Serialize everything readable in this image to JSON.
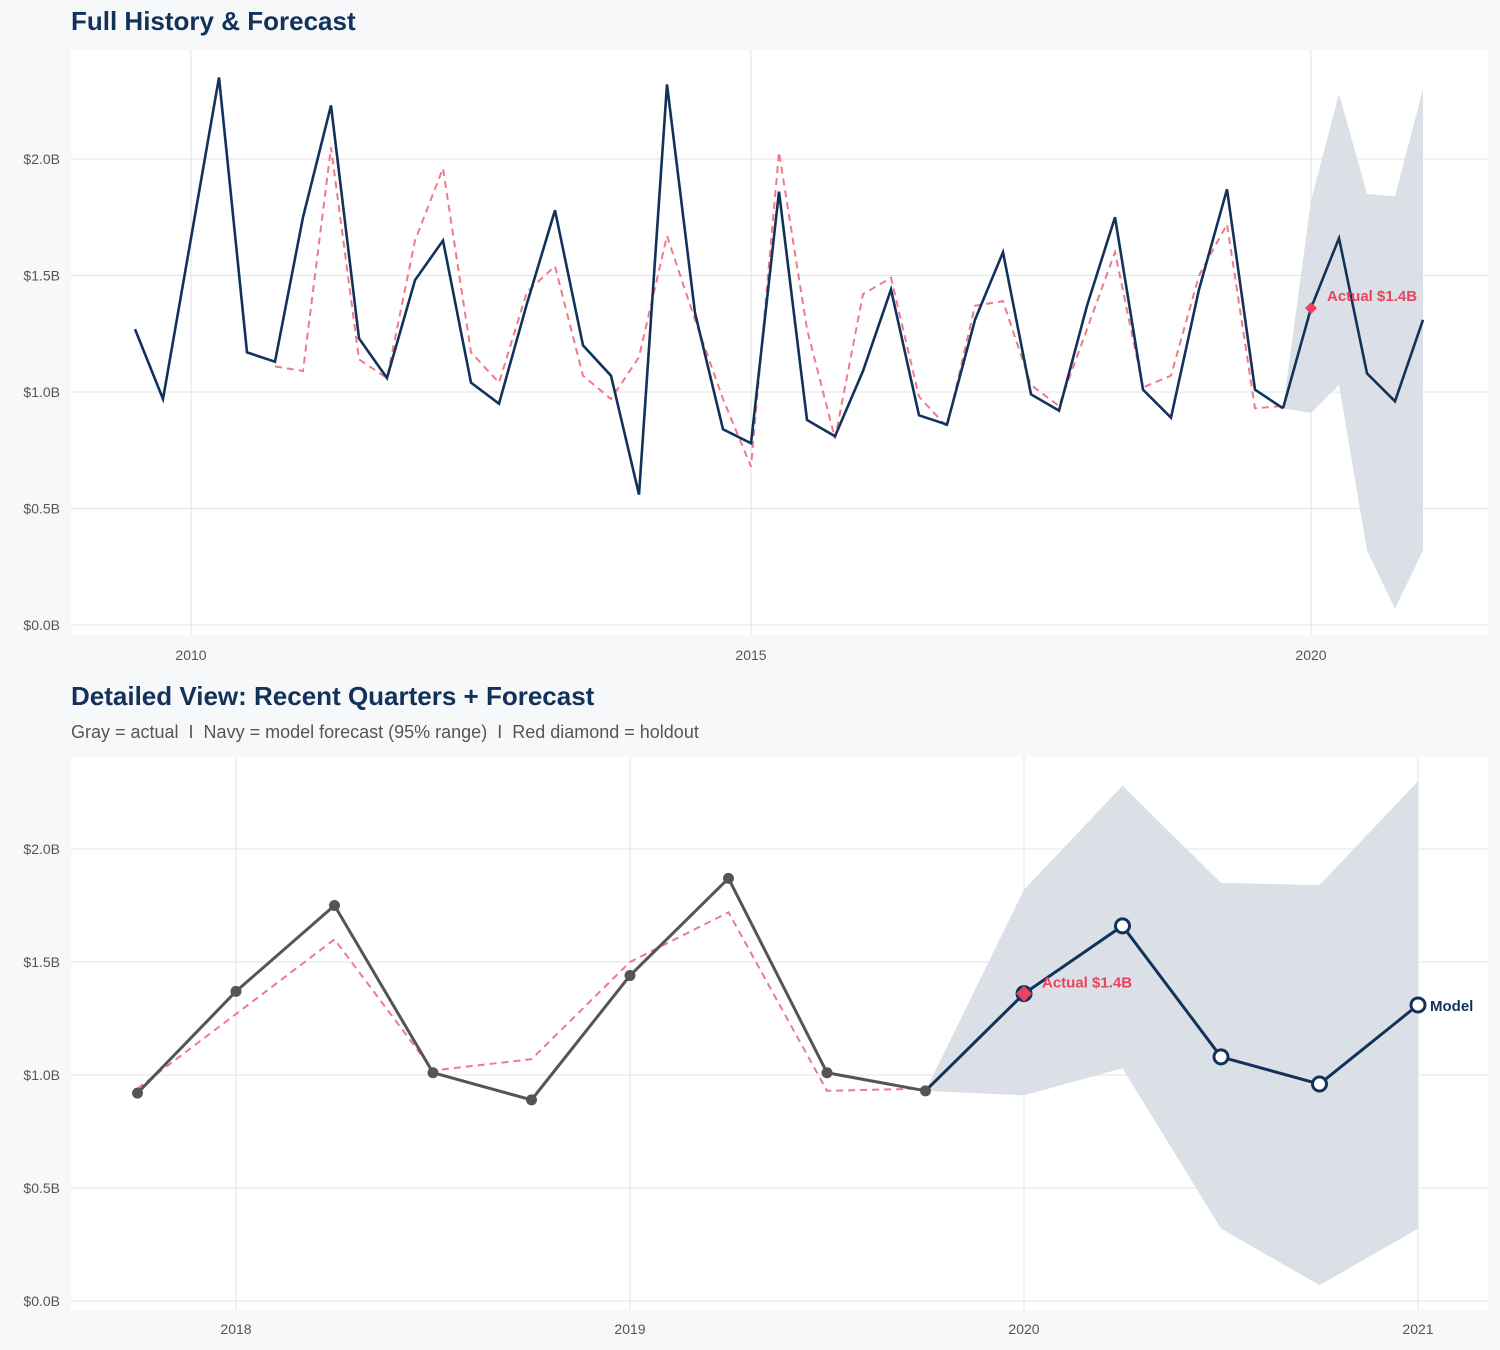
{
  "chart_data": [
    {
      "type": "line",
      "title": "Full History & Forecast",
      "xlim": [
        2008.93,
        2021.58
      ],
      "ylim": [
        -0.05,
        2.5
      ],
      "x_ticks": [
        2010,
        2015,
        2020
      ],
      "x_tick_labels": [
        "2010",
        "2015",
        "2020"
      ],
      "y_ticks": [
        0,
        0.5,
        1.0,
        1.5,
        2.0
      ],
      "y_tick_labels": [
        "$0.0B",
        "$0.5B",
        "$1.0B",
        "$1.5B",
        "$2.0B"
      ],
      "grid": true,
      "actual": {
        "start": 2009.5,
        "step": 0.25,
        "color": "#13325b",
        "values": [
          1.27,
          0.97,
          1.66,
          2.35,
          1.17,
          1.13,
          1.75,
          2.23,
          1.23,
          1.06,
          1.48,
          1.65,
          1.04,
          0.95,
          1.38,
          1.78,
          1.2,
          1.07,
          0.56,
          2.32,
          1.34,
          0.84,
          0.78,
          1.86,
          0.88,
          0.81,
          1.09,
          1.44,
          0.9,
          0.86,
          1.31,
          1.6,
          0.99,
          0.92,
          1.37,
          1.75,
          1.01,
          0.89,
          1.44,
          1.87,
          1.01,
          0.93
        ]
      },
      "fitted": {
        "start": 2010.75,
        "step": 0.25,
        "color": "#ef7a8c",
        "values": [
          1.11,
          1.09,
          2.05,
          1.14,
          1.06,
          1.65,
          1.96,
          1.17,
          1.04,
          1.43,
          1.54,
          1.07,
          0.97,
          1.15,
          1.67,
          1.31,
          0.97,
          0.68,
          2.03,
          1.27,
          0.8,
          1.42,
          1.49,
          0.98,
          0.85,
          1.37,
          1.39,
          1.03,
          0.94,
          1.27,
          1.6,
          1.02,
          1.07,
          1.5,
          1.72,
          0.93,
          0.94
        ]
      },
      "forecast": {
        "x": [
          2019.75,
          2020.0,
          2020.25,
          2020.5,
          2020.75,
          2021.0
        ],
        "values": [
          0.93,
          1.36,
          1.66,
          1.08,
          0.96,
          1.31
        ],
        "lower": [
          0.93,
          0.91,
          1.03,
          0.32,
          0.07,
          0.32
        ],
        "upper": [
          0.93,
          1.82,
          2.28,
          1.85,
          1.84,
          2.3
        ],
        "color": "#13325b",
        "band_color": "#d9dee5"
      },
      "holdout": {
        "x": 2020.0,
        "value": 1.36,
        "label": "Actual $1.4B",
        "color": "#e8435f"
      }
    },
    {
      "type": "line",
      "title": "Detailed View: Recent Quarters + Forecast",
      "subtitle": "Gray = actual  I  Navy = model forecast (95% range)  I  Red diamond = holdout",
      "xlim": [
        2017.58,
        2021.18
      ],
      "ylim": [
        -0.04,
        2.4
      ],
      "x_ticks": [
        2018,
        2019,
        2020,
        2021
      ],
      "x_tick_labels": [
        "2018",
        "2019",
        "2020",
        "2021"
      ],
      "y_ticks": [
        0,
        0.5,
        1.0,
        1.5,
        2.0
      ],
      "y_tick_labels": [
        "$0.0B",
        "$0.5B",
        "$1.0B",
        "$1.5B",
        "$2.0B"
      ],
      "grid": true,
      "actual": {
        "start": 2017.75,
        "step": 0.25,
        "color": "#555555",
        "values": [
          0.92,
          1.37,
          1.75,
          1.01,
          0.89,
          1.44,
          1.87,
          1.01,
          0.93
        ]
      },
      "fitted": {
        "start": 2017.75,
        "step": 0.25,
        "color": "#ef7a8c",
        "values": [
          0.94,
          1.27,
          1.6,
          1.02,
          1.07,
          1.5,
          1.72,
          0.93,
          0.94
        ]
      },
      "forecast": {
        "x": [
          2019.75,
          2020.0,
          2020.25,
          2020.5,
          2020.75,
          2021.0
        ],
        "values": [
          0.93,
          1.36,
          1.66,
          1.08,
          0.96,
          1.31
        ],
        "lower": [
          0.93,
          0.91,
          1.03,
          0.32,
          0.07,
          0.32
        ],
        "upper": [
          0.93,
          1.82,
          2.28,
          1.85,
          1.84,
          2.3
        ],
        "color": "#13325b",
        "band_color": "#d9dee5",
        "end_label": "Model"
      },
      "holdout": {
        "x": 2020.0,
        "value": 1.36,
        "label": "Actual $1.4B",
        "color": "#e8435f"
      }
    }
  ]
}
